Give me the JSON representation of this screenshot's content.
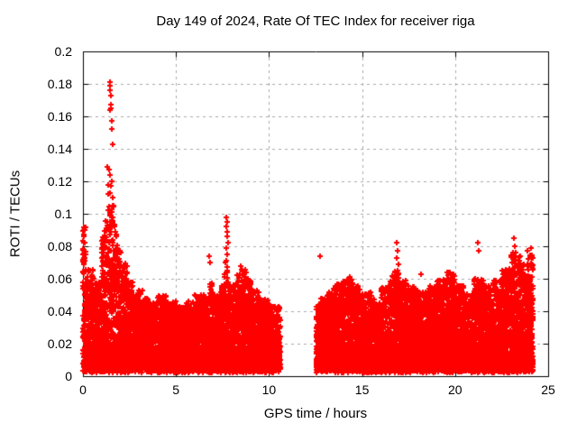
{
  "chart_data": {
    "type": "scatter",
    "title": "Day 149 of 2024, Rate Of TEC Index for receiver riga",
    "xlabel": "GPS time / hours",
    "ylabel": "ROTI / TECUs",
    "xlim": [
      0,
      25
    ],
    "ylim": [
      0,
      0.2
    ],
    "x_tick_values": [
      0,
      5,
      10,
      15,
      20,
      25
    ],
    "x_tick_labels": [
      "0",
      "5",
      "10",
      "15",
      "20",
      "25"
    ],
    "y_tick_values": [
      0,
      0.02,
      0.04,
      0.06,
      0.08,
      0.1,
      0.12,
      0.14,
      0.16,
      0.18,
      0.2
    ],
    "y_tick_labels": [
      "0",
      "0.02",
      "0.04",
      "0.06",
      "0.08",
      "0.1",
      "0.12",
      "0.14",
      "0.16",
      "0.18",
      "0.2"
    ],
    "grid": true,
    "grid_style": "dashed",
    "legend": "none",
    "marker": "plus",
    "color": "#ff0000",
    "axis_color": "#000000",
    "grid_color": "#a8a8a8",
    "background_color": "#ffffff",
    "x_data_range": [
      0,
      24.2
    ],
    "data_gaps": [
      [
        10.6,
        12.52
      ]
    ],
    "cloud_base": 0.003,
    "cloud_envelope": [
      [
        0.0,
        0.092
      ],
      [
        0.15,
        0.066
      ],
      [
        0.6,
        0.058
      ],
      [
        1.0,
        0.09
      ],
      [
        1.2,
        0.1
      ],
      [
        1.35,
        0.105
      ],
      [
        1.65,
        0.095
      ],
      [
        1.85,
        0.08
      ],
      [
        2.1,
        0.07
      ],
      [
        2.4,
        0.06
      ],
      [
        2.8,
        0.053
      ],
      [
        3.2,
        0.048
      ],
      [
        3.6,
        0.045
      ],
      [
        4.0,
        0.05
      ],
      [
        4.5,
        0.046
      ],
      [
        5.0,
        0.043
      ],
      [
        5.5,
        0.046
      ],
      [
        6.0,
        0.05
      ],
      [
        6.5,
        0.048
      ],
      [
        6.8,
        0.058
      ],
      [
        7.0,
        0.05
      ],
      [
        7.4,
        0.056
      ],
      [
        7.6,
        0.07
      ],
      [
        7.9,
        0.056
      ],
      [
        8.3,
        0.066
      ],
      [
        8.7,
        0.06
      ],
      [
        9.1,
        0.053
      ],
      [
        9.5,
        0.048
      ],
      [
        10.0,
        0.043
      ],
      [
        12.52,
        0.048
      ],
      [
        13.0,
        0.052
      ],
      [
        13.5,
        0.057
      ],
      [
        14.0,
        0.06
      ],
      [
        14.5,
        0.056
      ],
      [
        15.0,
        0.052
      ],
      [
        15.5,
        0.047
      ],
      [
        16.0,
        0.055
      ],
      [
        16.5,
        0.065
      ],
      [
        17.0,
        0.06
      ],
      [
        17.5,
        0.055
      ],
      [
        18.0,
        0.052
      ],
      [
        18.5,
        0.056
      ],
      [
        19.0,
        0.06
      ],
      [
        19.5,
        0.064
      ],
      [
        20.0,
        0.056
      ],
      [
        20.5,
        0.051
      ],
      [
        21.0,
        0.06
      ],
      [
        21.5,
        0.056
      ],
      [
        22.0,
        0.06
      ],
      [
        22.5,
        0.066
      ],
      [
        23.0,
        0.078
      ],
      [
        23.5,
        0.07
      ],
      [
        24.0,
        0.075
      ]
    ],
    "outliers": [
      [
        1.45,
        0.181
      ],
      [
        1.47,
        0.179
      ],
      [
        1.44,
        0.176
      ],
      [
        1.48,
        0.173
      ],
      [
        1.5,
        0.167
      ],
      [
        1.52,
        0.165
      ],
      [
        1.46,
        0.164
      ],
      [
        1.55,
        0.157
      ],
      [
        1.53,
        0.152
      ],
      [
        1.58,
        0.143
      ],
      [
        1.3,
        0.129
      ],
      [
        1.42,
        0.127
      ],
      [
        1.45,
        0.124
      ],
      [
        1.55,
        0.12
      ],
      [
        1.5,
        0.117
      ],
      [
        1.47,
        0.113
      ],
      [
        1.35,
        0.118
      ],
      [
        1.38,
        0.112
      ],
      [
        1.6,
        0.11
      ],
      [
        1.62,
        0.105
      ],
      [
        1.55,
        0.101
      ],
      [
        0.03,
        0.09
      ],
      [
        0.05,
        0.086
      ],
      [
        0.04,
        0.082
      ],
      [
        0.06,
        0.078
      ],
      [
        0.03,
        0.073
      ],
      [
        0.05,
        0.069
      ],
      [
        0.02,
        0.064
      ],
      [
        6.79,
        0.074
      ],
      [
        6.83,
        0.07
      ],
      [
        7.72,
        0.098
      ],
      [
        7.74,
        0.095
      ],
      [
        7.7,
        0.092
      ],
      [
        7.76,
        0.089
      ],
      [
        7.73,
        0.086
      ],
      [
        7.78,
        0.082
      ],
      [
        7.7,
        0.079
      ],
      [
        7.75,
        0.075
      ],
      [
        7.72,
        0.071
      ],
      [
        7.77,
        0.067
      ],
      [
        8.5,
        0.068
      ],
      [
        8.56,
        0.065
      ],
      [
        8.62,
        0.062
      ],
      [
        8.76,
        0.064
      ],
      [
        8.86,
        0.06
      ],
      [
        9.02,
        0.058
      ],
      [
        12.72,
        0.074
      ],
      [
        14.32,
        0.061
      ],
      [
        16.88,
        0.082
      ],
      [
        16.92,
        0.077
      ],
      [
        16.86,
        0.073
      ],
      [
        16.95,
        0.069
      ],
      [
        16.9,
        0.065
      ],
      [
        18.15,
        0.063
      ],
      [
        19.62,
        0.062
      ],
      [
        21.22,
        0.082
      ],
      [
        21.26,
        0.077
      ],
      [
        23.18,
        0.085
      ],
      [
        23.22,
        0.08
      ],
      [
        23.25,
        0.076
      ],
      [
        23.15,
        0.072
      ],
      [
        23.3,
        0.068
      ],
      [
        23.9,
        0.077
      ],
      [
        23.93,
        0.072
      ],
      [
        23.87,
        0.068
      ],
      [
        24.1,
        0.079
      ],
      [
        24.12,
        0.073
      ]
    ]
  }
}
